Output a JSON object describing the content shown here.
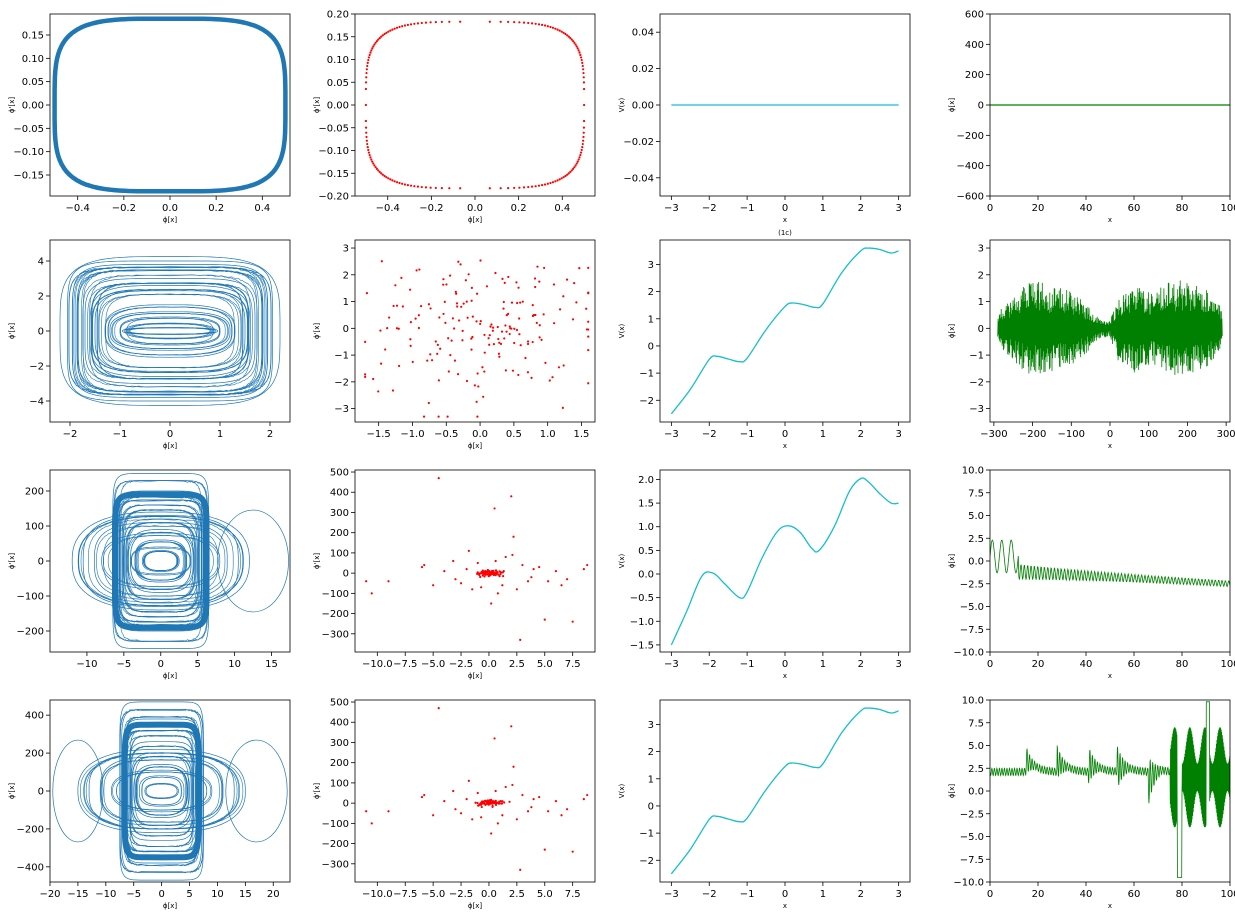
{
  "colors": {
    "phase": "#1f77b4",
    "poincare": "#ff0000",
    "potential": "#17becf",
    "time": "#008000"
  },
  "chart_data": [
    {
      "id": "p00",
      "type": "line",
      "kind": "phase-orbit",
      "xlabel": "ϕ[x]",
      "ylabel": "ϕ'[x]",
      "xlim": [
        -0.52,
        0.52
      ],
      "ylim": [
        -0.195,
        0.195
      ],
      "xticks": [
        "-0.4",
        "-0.2",
        "0.0",
        "0.2",
        "0.4"
      ],
      "yticks": [
        "-0.15",
        "-0.10",
        "-0.05",
        "0.00",
        "0.05",
        "0.10",
        "0.15"
      ],
      "orbits": [
        {
          "a": 0.5,
          "b": 0.185,
          "p": 4,
          "w": 4.5
        }
      ]
    },
    {
      "id": "p01",
      "type": "scatter",
      "kind": "poincare-ring",
      "xlabel": "ϕ[x]",
      "ylabel": "ϕ'[x]",
      "xlim": [
        -0.55,
        0.55
      ],
      "ylim": [
        -0.2,
        0.2
      ],
      "xticks": [
        "-0.4",
        "-0.2",
        "0.0",
        "0.2",
        "0.4"
      ],
      "yticks": [
        "-0.20",
        "-0.15",
        "-0.10",
        "-0.05",
        "0.00",
        "0.05",
        "0.10",
        "0.15",
        "0.20"
      ],
      "ring": {
        "a": 0.5,
        "b": 0.183,
        "p": 4,
        "n": 170
      }
    },
    {
      "id": "p02",
      "type": "line",
      "kind": "flat",
      "xlabel": "x",
      "ylabel": "V(x)",
      "xlim": [
        -3.3,
        3.3
      ],
      "ylim": [
        -0.05,
        0.05
      ],
      "xticks": [
        "-3",
        "-2",
        "-1",
        "0",
        "1",
        "2",
        "3"
      ],
      "yticks": [
        "-0.04",
        "-0.02",
        "0.00",
        "0.02",
        "0.04"
      ],
      "x": [
        -3,
        3
      ],
      "y": [
        0,
        0
      ]
    },
    {
      "id": "p03",
      "type": "line",
      "kind": "flat",
      "xlabel": "x",
      "ylabel": "ϕ[x]",
      "xlim": [
        0,
        100
      ],
      "ylim": [
        -600,
        600
      ],
      "xticks": [
        "0",
        "20",
        "40",
        "60",
        "80",
        "100"
      ],
      "yticks": [
        "-600",
        "-400",
        "-200",
        "0",
        "200",
        "400",
        "600"
      ],
      "x": [
        0,
        100
      ],
      "y": [
        0,
        0
      ]
    },
    {
      "id": "p10",
      "type": "line",
      "kind": "phase-orbit",
      "xlabel": "ϕ[x]",
      "ylabel": "ϕ'[x]",
      "xlim": [
        -2.4,
        2.4
      ],
      "ylim": [
        -5.2,
        5.2
      ],
      "xticks": [
        "-2",
        "-1",
        "0",
        "1",
        "2"
      ],
      "yticks": [
        "-4",
        "-2",
        "0",
        "2",
        "4"
      ],
      "orbits": [
        {
          "a": 0.95,
          "b": 0.2,
          "p": 2.5
        },
        {
          "a": 0.9,
          "b": 0.45,
          "p": 2.5
        },
        {
          "a": 1.0,
          "b": 0.8,
          "p": 3
        },
        {
          "a": 1.3,
          "b": 1.5,
          "p": 3
        },
        {
          "a": 1.5,
          "b": 2.3,
          "p": 4
        },
        {
          "a": 1.7,
          "b": 3.0,
          "p": 5
        },
        {
          "a": 1.85,
          "b": 3.5,
          "p": 5
        },
        {
          "a": 1.95,
          "b": 3.8,
          "p": 6
        },
        {
          "a": 2.05,
          "b": 4.0,
          "p": 6
        },
        {
          "a": 2.2,
          "b": 4.25,
          "p": 4
        },
        {
          "a": 1.6,
          "b": 2.6,
          "p": 4
        },
        {
          "a": 1.2,
          "b": 1.1,
          "p": 3
        }
      ]
    },
    {
      "id": "p11",
      "type": "scatter",
      "kind": "poincare-cloud",
      "xlabel": "ϕ[x]",
      "ylabel": "ϕ'[x]",
      "xlim": [
        -1.85,
        1.7
      ],
      "ylim": [
        -3.5,
        3.3
      ],
      "xticks": [
        "-1.5",
        "-1.0",
        "-0.5",
        "0.0",
        "0.5",
        "1.0",
        "1.5"
      ],
      "yticks": [
        "-3",
        "-2",
        "-1",
        "0",
        "1",
        "2",
        "3"
      ],
      "cloud": {
        "n": 190,
        "sx": 0.85,
        "sy": 1.35,
        "seed": 7
      }
    },
    {
      "id": "p12",
      "type": "line",
      "kind": "curve",
      "title": "(1c)",
      "xlabel": "x",
      "ylabel": "V(x)",
      "xlim": [
        -3.3,
        3.3
      ],
      "ylim": [
        -2.8,
        3.9
      ],
      "xticks": [
        "-3",
        "-2",
        "-1",
        "0",
        "1",
        "2",
        "3"
      ],
      "yticks": [
        "-2",
        "-1",
        "0",
        "1",
        "2",
        "3"
      ],
      "x": [
        -3.0,
        -2.5,
        -2.0,
        -1.8,
        -1.5,
        -1.2,
        -1.0,
        -0.5,
        0.0,
        0.2,
        0.5,
        0.8,
        1.0,
        1.5,
        2.0,
        2.2,
        2.5,
        2.8,
        3.0
      ],
      "y": [
        -2.5,
        -1.6,
        -0.5,
        -0.38,
        -0.48,
        -0.58,
        -0.45,
        0.6,
        1.45,
        1.58,
        1.52,
        1.42,
        1.55,
        2.7,
        3.5,
        3.6,
        3.55,
        3.42,
        3.5
      ]
    },
    {
      "id": "p13",
      "type": "line",
      "kind": "oscillation",
      "xlabel": "x",
      "ylabel": "ϕ[x]",
      "xlim": [
        -310,
        310
      ],
      "ylim": [
        -3.5,
        3.3
      ],
      "xticks": [
        "-300",
        "-200",
        "-100",
        "0",
        "100",
        "200",
        "300"
      ],
      "yticks": [
        "-3",
        "-2",
        "-1",
        "0",
        "1",
        "2",
        "3"
      ],
      "x": [
        -290,
        290
      ],
      "amp": [
        [
          -290,
          0.6
        ],
        [
          -240,
          1.4
        ],
        [
          -200,
          1.8
        ],
        [
          -150,
          1.6
        ],
        [
          -100,
          1.4
        ],
        [
          -60,
          0.9
        ],
        [
          -30,
          0.4
        ],
        [
          0,
          0.3
        ],
        [
          20,
          1.2
        ],
        [
          60,
          1.7
        ],
        [
          110,
          1.3
        ],
        [
          150,
          1.8
        ],
        [
          200,
          1.8
        ],
        [
          240,
          1.6
        ],
        [
          290,
          0.8
        ]
      ],
      "n": 720,
      "mean": 0.0
    },
    {
      "id": "p20",
      "type": "line",
      "kind": "phase-orbit",
      "xlabel": "ϕ[x]",
      "ylabel": "ϕ'[x]",
      "xlim": [
        -15,
        17.5
      ],
      "ylim": [
        -260,
        260
      ],
      "xticks": [
        "-10",
        "-5",
        "0",
        "5",
        "10",
        "15"
      ],
      "yticks": [
        "-200",
        "-100",
        "0",
        "100",
        "200"
      ],
      "orbits": [
        {
          "a": 3.5,
          "b": 60,
          "p": 3
        },
        {
          "a": 4.5,
          "b": 90,
          "p": 3
        },
        {
          "a": 5.0,
          "b": 120,
          "p": 4
        },
        {
          "a": 5.5,
          "b": 160,
          "p": 5
        },
        {
          "a": 5.8,
          "b": 175,
          "p": 6
        },
        {
          "a": 6.0,
          "b": 200,
          "p": 7
        },
        {
          "a": 6.3,
          "b": 230,
          "p": 8
        },
        {
          "a": 6.5,
          "b": 250,
          "p": 9
        },
        {
          "a": 9.0,
          "b": 110,
          "p": 3
        },
        {
          "a": 10.5,
          "b": 130,
          "p": 3
        },
        {
          "a": 12,
          "b": 140,
          "p": 2.5
        },
        {
          "a": 8,
          "b": 80,
          "p": 2.5
        },
        {
          "a": 2.5,
          "b": 30,
          "p": 2.5
        },
        {
          "a": 4,
          "b": 40,
          "p": 3
        },
        {
          "a": 6.2,
          "b": 190,
          "p": 8,
          "w": 6
        }
      ],
      "extra": [
        {
          "cx": 12.5,
          "cy": 0,
          "r": 4.8
        }
      ]
    },
    {
      "id": "p21",
      "type": "scatter",
      "kind": "poincare-spike",
      "xlabel": "ϕ[x]",
      "ylabel": "ϕ'[x]",
      "xlim": [
        -12,
        9.5
      ],
      "ylim": [
        -390,
        510
      ],
      "xticks": [
        "-10.0",
        "-7.5",
        "-5.0",
        "-2.5",
        "0.0",
        "2.5",
        "5.0",
        "7.5"
      ],
      "yticks": [
        "-300",
        "-200",
        "-100",
        "0",
        "100",
        "200",
        "300",
        "400",
        "500"
      ],
      "points": [
        [
          -4.5,
          470
        ],
        [
          2,
          380
        ],
        [
          0.5,
          320
        ],
        [
          -11,
          -40
        ],
        [
          -10.5,
          -100
        ],
        [
          -9,
          -40
        ],
        [
          -6,
          30
        ],
        [
          -5,
          -60
        ],
        [
          -4,
          10
        ],
        [
          -3,
          -30
        ],
        [
          -2.5,
          -50
        ],
        [
          -2,
          20
        ],
        [
          -1.5,
          -80
        ],
        [
          -1,
          50
        ],
        [
          0.2,
          -150
        ],
        [
          0.8,
          -100
        ],
        [
          1.5,
          80
        ],
        [
          2.2,
          180
        ],
        [
          2.5,
          -80
        ],
        [
          2.8,
          -330
        ],
        [
          3,
          40
        ],
        [
          3.5,
          -40
        ],
        [
          4,
          20
        ],
        [
          5,
          -230
        ],
        [
          5.3,
          -40
        ],
        [
          6.5,
          -60
        ],
        [
          7,
          -30
        ],
        [
          7.5,
          -240
        ],
        [
          8.5,
          20
        ],
        [
          8.8,
          40
        ],
        [
          -5.8,
          40
        ],
        [
          -3.2,
          60
        ],
        [
          -1.8,
          110
        ],
        [
          1.2,
          -60
        ],
        [
          3.8,
          -20
        ],
        [
          4.5,
          30
        ],
        [
          6,
          10
        ],
        [
          0.6,
          60
        ],
        [
          -0.7,
          -70
        ],
        [
          2.1,
          90
        ]
      ],
      "core": {
        "n": 80,
        "sx": 0.6,
        "sy": 8
      }
    },
    {
      "id": "p22",
      "type": "line",
      "kind": "curve",
      "xlabel": "x",
      "ylabel": "V(x)",
      "xlim": [
        -3.3,
        3.3
      ],
      "ylim": [
        -1.65,
        2.2
      ],
      "xticks": [
        "-3",
        "-2",
        "-1",
        "0",
        "1",
        "2",
        "3"
      ],
      "yticks": [
        "-1.5",
        "-1.0",
        "-0.5",
        "0.0",
        "0.5",
        "1.0",
        "1.5",
        "2.0"
      ],
      "x": [
        -3.0,
        -2.6,
        -2.2,
        -1.9,
        -1.6,
        -1.2,
        -1.0,
        -0.6,
        -0.2,
        0.1,
        0.4,
        0.7,
        0.9,
        1.3,
        1.7,
        2.0,
        2.2,
        2.5,
        2.8,
        3.0
      ],
      "y": [
        -1.5,
        -0.8,
        -0.05,
        0.02,
        -0.2,
        -0.5,
        -0.38,
        0.35,
        0.9,
        1.02,
        0.88,
        0.55,
        0.5,
        1.0,
        1.75,
        2.02,
        1.95,
        1.7,
        1.5,
        1.5
      ]
    },
    {
      "id": "p23",
      "type": "line",
      "kind": "decay-osc",
      "xlabel": "x",
      "ylabel": "ϕ[x]",
      "xlim": [
        0,
        100
      ],
      "ylim": [
        -10,
        10
      ],
      "xticks": [
        "0",
        "20",
        "40",
        "60",
        "80",
        "100"
      ],
      "yticks": [
        "-10.0",
        "-7.5",
        "-5.0",
        "-2.5",
        "0.0",
        "2.5",
        "5.0",
        "7.5",
        "10.0"
      ],
      "x": [
        0,
        100
      ],
      "n": 500
    },
    {
      "id": "p30",
      "type": "line",
      "kind": "phase-orbit",
      "xlabel": "ϕ[x]",
      "ylabel": "ϕ'[x]",
      "xlim": [
        -20,
        23
      ],
      "ylim": [
        -480,
        480
      ],
      "xticks": [
        "-20",
        "-15",
        "-10",
        "-5",
        "0",
        "5",
        "10",
        "15",
        "20"
      ],
      "yticks": [
        "-400",
        "-200",
        "0",
        "200",
        "400"
      ],
      "orbits": [
        {
          "a": 4,
          "b": 80,
          "p": 3
        },
        {
          "a": 5,
          "b": 140,
          "p": 3
        },
        {
          "a": 5.5,
          "b": 200,
          "p": 4
        },
        {
          "a": 6,
          "b": 260,
          "p": 5
        },
        {
          "a": 6.4,
          "b": 320,
          "p": 6
        },
        {
          "a": 6.8,
          "b": 380,
          "p": 7
        },
        {
          "a": 7.2,
          "b": 430,
          "p": 8
        },
        {
          "a": 7.5,
          "b": 470,
          "p": 9
        },
        {
          "a": 11,
          "b": 180,
          "p": 3
        },
        {
          "a": 13,
          "b": 200,
          "p": 3
        },
        {
          "a": 15,
          "b": 220,
          "p": 2.5
        },
        {
          "a": 9,
          "b": 110,
          "p": 2.5
        },
        {
          "a": 3,
          "b": 40,
          "p": 2.5
        },
        {
          "a": 6.6,
          "b": 350,
          "p": 8,
          "w": 6
        }
      ],
      "extra": [
        {
          "cx": 17,
          "cy": 0,
          "r": 5.5
        },
        {
          "cx": -15,
          "cy": 0,
          "r": 4.5
        }
      ]
    },
    {
      "id": "p31",
      "type": "scatter",
      "kind": "poincare-spike",
      "xlabel": "ϕ[x]",
      "ylabel": "ϕ'[x]",
      "xlim": [
        -12,
        9.5
      ],
      "ylim": [
        -390,
        510
      ],
      "xticks": [
        "-10.0",
        "-7.5",
        "-5.0",
        "-2.5",
        "0.0",
        "2.5",
        "5.0",
        "7.5"
      ],
      "yticks": [
        "-300",
        "-200",
        "-100",
        "0",
        "100",
        "200",
        "300",
        "400",
        "500"
      ],
      "points": [
        [
          -4.5,
          470
        ],
        [
          2,
          380
        ],
        [
          0.5,
          320
        ],
        [
          -11,
          -40
        ],
        [
          -10.5,
          -100
        ],
        [
          -9,
          -40
        ],
        [
          -6,
          30
        ],
        [
          -5,
          -60
        ],
        [
          -4,
          10
        ],
        [
          -3,
          -30
        ],
        [
          -2.5,
          -50
        ],
        [
          -2,
          20
        ],
        [
          -1.5,
          -80
        ],
        [
          -1,
          50
        ],
        [
          0.2,
          -150
        ],
        [
          0.8,
          -100
        ],
        [
          1.5,
          80
        ],
        [
          2.2,
          180
        ],
        [
          2.5,
          -80
        ],
        [
          2.8,
          -330
        ],
        [
          3,
          40
        ],
        [
          3.5,
          -40
        ],
        [
          4,
          20
        ],
        [
          5,
          -230
        ],
        [
          5.3,
          -40
        ],
        [
          6.5,
          -60
        ],
        [
          7,
          -30
        ],
        [
          7.5,
          -240
        ],
        [
          8.5,
          20
        ],
        [
          8.8,
          40
        ],
        [
          -5.8,
          40
        ],
        [
          -3.2,
          60
        ],
        [
          -1.8,
          110
        ],
        [
          1.2,
          -60
        ],
        [
          3.8,
          -20
        ],
        [
          4.5,
          30
        ],
        [
          6,
          10
        ],
        [
          0.6,
          60
        ],
        [
          -0.7,
          -70
        ],
        [
          2.1,
          90
        ]
      ],
      "core": {
        "n": 80,
        "sx": 0.6,
        "sy": 8
      }
    },
    {
      "id": "p32",
      "type": "line",
      "kind": "curve",
      "xlabel": "x",
      "ylabel": "V(x)",
      "xlim": [
        -3.3,
        3.3
      ],
      "ylim": [
        -2.8,
        3.9
      ],
      "xticks": [
        "-3",
        "-2",
        "-1",
        "0",
        "1",
        "2",
        "3"
      ],
      "yticks": [
        "-2",
        "-1",
        "0",
        "1",
        "2",
        "3"
      ],
      "x": [
        -3.0,
        -2.5,
        -2.0,
        -1.8,
        -1.5,
        -1.2,
        -1.0,
        -0.5,
        0.0,
        0.2,
        0.5,
        0.8,
        1.0,
        1.5,
        2.0,
        2.2,
        2.5,
        2.8,
        3.0
      ],
      "y": [
        -2.5,
        -1.6,
        -0.5,
        -0.38,
        -0.48,
        -0.58,
        -0.45,
        0.6,
        1.45,
        1.58,
        1.52,
        1.42,
        1.55,
        2.7,
        3.5,
        3.6,
        3.55,
        3.42,
        3.5
      ]
    },
    {
      "id": "p33",
      "type": "line",
      "kind": "resonance-osc",
      "xlabel": "x",
      "ylabel": "ϕ[x]",
      "xlim": [
        0,
        100
      ],
      "ylim": [
        -10,
        10
      ],
      "xticks": [
        "0",
        "20",
        "40",
        "60",
        "80",
        "100"
      ],
      "yticks": [
        "-10.0",
        "-7.5",
        "-5.0",
        "-2.5",
        "0.0",
        "2.5",
        "5.0",
        "7.5",
        "10.0"
      ],
      "x": [
        0,
        100
      ],
      "n": 900,
      "peaks": [
        15,
        28,
        41,
        53,
        66,
        78,
        91
      ]
    }
  ]
}
